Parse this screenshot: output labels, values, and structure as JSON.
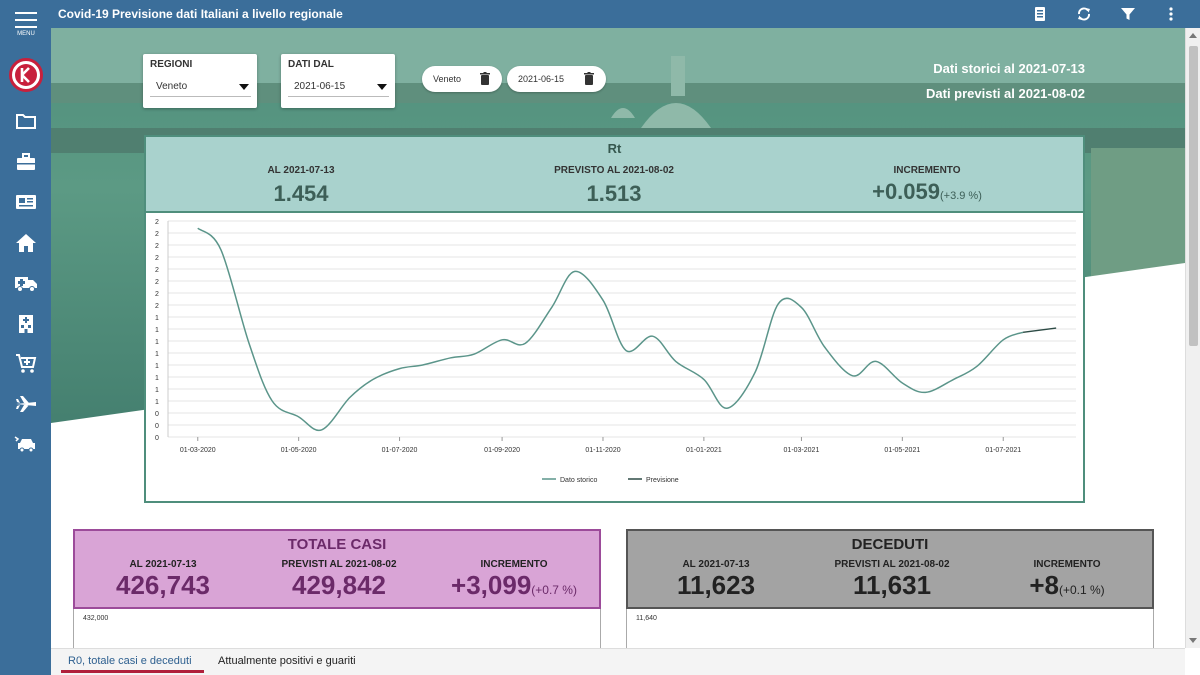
{
  "app": {
    "title": "Covid-19 Previsione dati Italiani a livello regionale",
    "menu_label": "MENU"
  },
  "toolbar": {
    "icons": [
      "notebook-icon",
      "refresh-icon",
      "filter-icon",
      "more-vert-icon"
    ]
  },
  "sidebar": {
    "icons": [
      "folder-icon",
      "briefcase-icon",
      "newspaper-icon",
      "home-icon",
      "ambulance-icon",
      "hospital-icon",
      "cart-add-icon",
      "airplane-icon",
      "car-crash-icon"
    ]
  },
  "filters": {
    "region_label": "REGIONI",
    "region_value": "Veneto",
    "date_label": "DATI DAL",
    "date_value": "2021-06-15",
    "chips": [
      "Veneto",
      "2021-06-15"
    ]
  },
  "hero_info": {
    "historic": "Dati storici al 2021-07-13",
    "forecast": "Dati previsti al 2021-08-02"
  },
  "rt": {
    "title": "Rt",
    "al_label": "AL 2021-07-13",
    "al_value": "1.454",
    "prev_label": "PREVISTO AL 2021-08-02",
    "prev_value": "1.513",
    "inc_label": "INCREMENTO",
    "inc_value": "+0.059",
    "inc_pct": "(+3.9 %)"
  },
  "chart_data": {
    "type": "line",
    "x": [
      "2020-03-01",
      "2020-03-15",
      "2020-04-01",
      "2020-04-15",
      "2020-05-01",
      "2020-05-15",
      "2020-06-01",
      "2020-06-15",
      "2020-07-01",
      "2020-07-15",
      "2020-08-01",
      "2020-08-15",
      "2020-09-01",
      "2020-09-15",
      "2020-10-01",
      "2020-10-15",
      "2020-11-01",
      "2020-11-15",
      "2020-12-01",
      "2020-12-15",
      "2021-01-01",
      "2021-01-15",
      "2021-02-01",
      "2021-02-15",
      "2021-03-01",
      "2021-03-15",
      "2021-04-01",
      "2021-04-15",
      "2021-05-01",
      "2021-05-15",
      "2021-06-01",
      "2021-06-15",
      "2021-07-01",
      "2021-07-13",
      "2021-08-02"
    ],
    "series": [
      {
        "name": "Dato storico",
        "values": [
          2.9,
          2.6,
          1.3,
          0.5,
          0.28,
          0.1,
          0.55,
          0.8,
          0.95,
          1.0,
          1.1,
          1.15,
          1.35,
          1.3,
          1.8,
          2.3,
          1.9,
          1.2,
          1.4,
          1.05,
          0.8,
          0.4,
          0.9,
          1.85,
          1.8,
          1.25,
          0.85,
          1.05,
          0.75,
          0.62,
          0.8,
          0.98,
          1.35,
          1.454,
          null
        ]
      },
      {
        "name": "Previsione",
        "values": [
          null,
          null,
          null,
          null,
          null,
          null,
          null,
          null,
          null,
          null,
          null,
          null,
          null,
          null,
          null,
          null,
          null,
          null,
          null,
          null,
          null,
          null,
          null,
          null,
          null,
          null,
          null,
          null,
          null,
          null,
          null,
          null,
          null,
          1.454,
          1.513
        ]
      }
    ],
    "x_tick_labels": [
      "01-03-2020",
      "01-05-2020",
      "01-07-2020",
      "01-09-2020",
      "01-11-2020",
      "01-01-2021",
      "01-03-2021",
      "01-05-2021",
      "01-07-2021"
    ],
    "y_tick_labels": [
      "2",
      "2",
      "2",
      "2",
      "2",
      "2",
      "2",
      "2",
      "1",
      "1",
      "1",
      "1",
      "1",
      "1",
      "1",
      "1",
      "0",
      "0",
      "0"
    ],
    "legend": [
      "Dato storico",
      "Previsione"
    ],
    "legend_position": "bottom",
    "grid": true,
    "colors": {
      "historic": "#5b958a",
      "forecast": "#2d4b45"
    }
  },
  "totale_casi": {
    "title": "TOTALE CASI",
    "al_label": "AL 2021-07-13",
    "al_value": "426,743",
    "prev_label": "PREVISTI AL 2021-08-02",
    "prev_value": "429,842",
    "inc_label": "INCREMENTO",
    "inc_value": "+3,099",
    "inc_pct": "(+0.7 %)",
    "axis_top": "432,000",
    "colors": {
      "head": "#d9a4d6",
      "border": "#9c4b9a",
      "text": "#6b2a69"
    }
  },
  "deceduti": {
    "title": "DECEDUTI",
    "al_label": "AL 2021-07-13",
    "al_value": "11,623",
    "prev_label": "PREVISTI AL 2021-08-02",
    "prev_value": "11,631",
    "inc_label": "INCREMENTO",
    "inc_value": "+8",
    "inc_pct": "(+0.1 %)",
    "axis_top": "11,640",
    "colors": {
      "head": "#a3a3a3",
      "border": "#555555",
      "text": "#222222"
    }
  },
  "tabs": [
    {
      "label": "R0, totale casi e deceduti",
      "active": true
    },
    {
      "label": "Attualmente positivi e guariti",
      "active": false
    }
  ],
  "colors": {
    "topbar": "#3b6e9a",
    "accent": "#b01f3b",
    "rt_head": "#a9d2cd",
    "rt_border": "#4f8e7c"
  }
}
